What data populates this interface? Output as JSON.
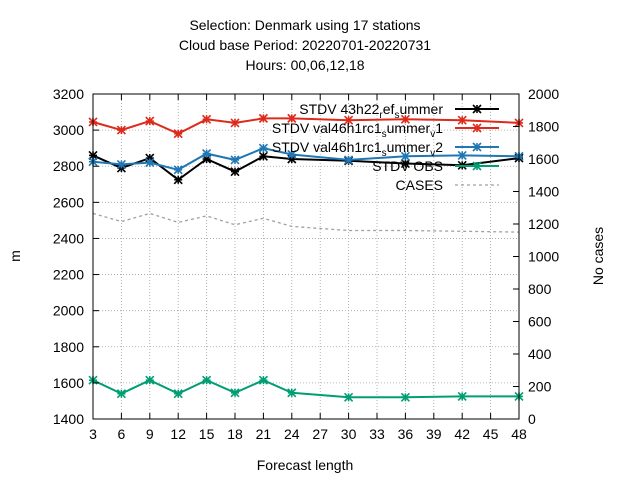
{
  "title_lines": [
    "Selection: Denmark using    17 stations",
    "Cloud base   Period: 20220701-20220731",
    "Hours:  00,06,12,18"
  ],
  "chart_data": {
    "type": "line",
    "xlabel": "Forecast length",
    "ylabel": "m",
    "y2label": "No cases",
    "xlim": [
      3,
      48
    ],
    "ylim": [
      1400,
      3200
    ],
    "y2lim": [
      0,
      2000
    ],
    "xticks": [
      3,
      6,
      9,
      12,
      15,
      18,
      21,
      24,
      27,
      30,
      33,
      36,
      39,
      42,
      45,
      48
    ],
    "yticks": [
      1400,
      1600,
      1800,
      2000,
      2200,
      2400,
      2600,
      2800,
      3000,
      3200
    ],
    "y2ticks": [
      0,
      200,
      400,
      600,
      800,
      1000,
      1200,
      1400,
      1600,
      1800,
      2000
    ],
    "grid": true,
    "legend_position": "top-right",
    "series": [
      {
        "name": "STDV 43h22_ref_summer",
        "legend": {
          "base": "STDV 43h22",
          "parts": [
            {
              "t": "r",
              "s": "sub"
            },
            {
              "t": "ef",
              "s": ""
            },
            {
              "t": "s",
              "s": "sub"
            },
            {
              "t": "ummer",
              "s": ""
            }
          ]
        },
        "axis": "y",
        "color": "#000000",
        "marker": "star",
        "dash": "",
        "x": [
          3,
          6,
          9,
          12,
          15,
          18,
          21,
          24,
          30,
          36,
          42,
          48
        ],
        "y": [
          2860,
          2790,
          2845,
          2725,
          2840,
          2770,
          2855,
          2840,
          2830,
          2815,
          2805,
          2845
        ]
      },
      {
        "name": "STDV val46h1rc1_summer_v1",
        "legend": {
          "base": "STDV val46h1rc1",
          "parts": [
            {
              "t": "s",
              "s": "sub"
            },
            {
              "t": "ummer",
              "s": ""
            },
            {
              "t": "v",
              "s": "sub"
            },
            {
              "t": "1",
              "s": ""
            }
          ]
        },
        "axis": "y",
        "color": "#dd2a1b",
        "marker": "star",
        "dash": "",
        "x": [
          3,
          6,
          9,
          12,
          15,
          18,
          21,
          24,
          30,
          36,
          42,
          48
        ],
        "y": [
          3045,
          3000,
          3050,
          2980,
          3060,
          3040,
          3065,
          3065,
          3055,
          3060,
          3055,
          3040
        ]
      },
      {
        "name": "STDV val46h1rc1_summer_v2",
        "legend": {
          "base": "STDV val46h1rc1",
          "parts": [
            {
              "t": "s",
              "s": "sub"
            },
            {
              "t": "ummer",
              "s": ""
            },
            {
              "t": "v",
              "s": "sub"
            },
            {
              "t": "2",
              "s": ""
            }
          ]
        },
        "axis": "y",
        "color": "#1f77b4",
        "marker": "star",
        "dash": "",
        "x": [
          3,
          6,
          9,
          12,
          15,
          18,
          21,
          24,
          30,
          36,
          42,
          48
        ],
        "y": [
          2825,
          2810,
          2820,
          2780,
          2870,
          2835,
          2900,
          2865,
          2835,
          2855,
          2860,
          2855
        ]
      },
      {
        "name": "STDV OBS",
        "legend": {
          "base": "STDV OBS",
          "parts": []
        },
        "axis": "y",
        "color": "#009e73",
        "marker": "star",
        "dash": "",
        "x": [
          3,
          6,
          9,
          12,
          15,
          18,
          21,
          24,
          30,
          36,
          42,
          48
        ],
        "y": [
          1615,
          1540,
          1615,
          1540,
          1615,
          1545,
          1615,
          1545,
          1520,
          1520,
          1525,
          1525
        ]
      },
      {
        "name": "CASES",
        "legend": {
          "base": "CASES",
          "parts": []
        },
        "axis": "y2",
        "color": "#a0a0a0",
        "marker": "none",
        "dash": "3,3",
        "x": [
          3,
          6,
          9,
          12,
          15,
          18,
          21,
          24,
          30,
          36,
          42,
          48
        ],
        "y": [
          1265,
          1215,
          1265,
          1210,
          1250,
          1195,
          1235,
          1185,
          1160,
          1160,
          1155,
          1150
        ]
      }
    ]
  }
}
